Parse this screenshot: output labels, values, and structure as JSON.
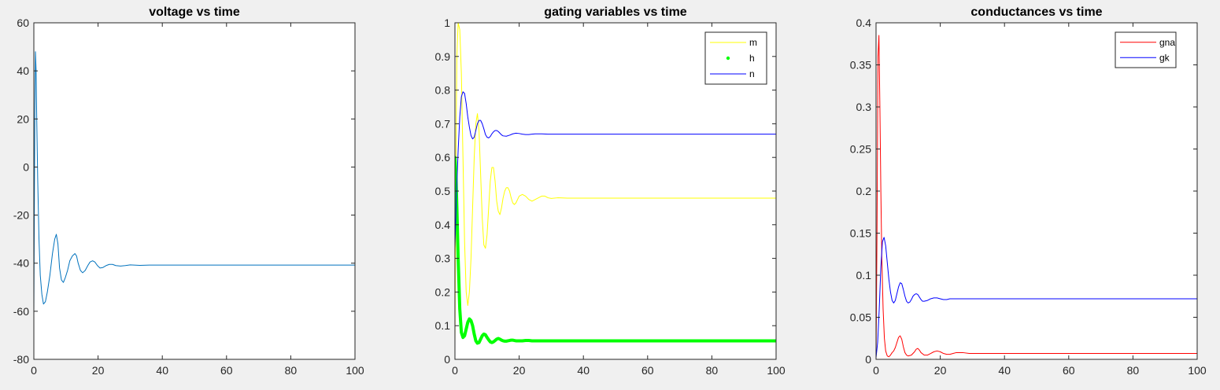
{
  "chart_data": [
    {
      "type": "line",
      "title": "voltage vs time",
      "xlim": [
        0,
        100
      ],
      "ylim": [
        -80,
        60
      ],
      "xticks": [
        0,
        20,
        40,
        60,
        80,
        100
      ],
      "yticks": [
        -80,
        -60,
        -40,
        -20,
        0,
        20,
        40,
        60
      ],
      "x_tick_labels": [
        "0",
        "20",
        "40",
        "60",
        "80",
        "100"
      ],
      "y_tick_labels": [
        "-80",
        "-60",
        "-40",
        "-20",
        "0",
        "20",
        "40",
        "60"
      ],
      "grid": false,
      "legend": null,
      "series": [
        {
          "color": "#0072bd",
          "style": "line",
          "x": [
            0,
            0.3,
            0.5,
            0.7,
            0.9,
            1.2,
            1.6,
            2.0,
            2.5,
            3.0,
            3.6,
            4.2,
            5.0,
            5.8,
            6.5,
            7.0,
            7.5,
            8.0,
            8.6,
            9.2,
            9.8,
            10.5,
            11.2,
            12.0,
            12.8,
            13.3,
            13.8,
            14.5,
            15.2,
            16.0,
            16.8,
            17.5,
            18.3,
            19.0,
            19.8,
            20.6,
            21.5,
            22.5,
            23.5,
            24.5,
            25.5,
            27.0,
            28.5,
            30.0,
            33.0,
            36.0,
            40.0,
            50.0,
            60.0,
            70.0,
            80.0,
            90.0,
            100.0
          ],
          "y": [
            -60,
            20,
            48,
            40,
            20,
            -5,
            -30,
            -45,
            -53,
            -57,
            -56,
            -52,
            -45,
            -36,
            -30,
            -28,
            -32,
            -42,
            -47,
            -48,
            -46,
            -43,
            -39,
            -37,
            -36,
            -37,
            -40,
            -43,
            -44,
            -43,
            -41,
            -39.5,
            -39,
            -39.5,
            -41,
            -42,
            -41.8,
            -41,
            -40.5,
            -40.5,
            -41,
            -41.2,
            -41,
            -40.7,
            -40.9,
            -40.8,
            -40.8,
            -40.8,
            -40.8,
            -40.8,
            -40.8,
            -40.8,
            -40.8
          ]
        }
      ]
    },
    {
      "type": "line",
      "title": "gating variables vs time",
      "xlim": [
        0,
        100
      ],
      "ylim": [
        0,
        1
      ],
      "xticks": [
        0,
        20,
        40,
        60,
        80,
        100
      ],
      "yticks": [
        0,
        0.1,
        0.2,
        0.3,
        0.4,
        0.5,
        0.6,
        0.7,
        0.8,
        0.9,
        1
      ],
      "x_tick_labels": [
        "0",
        "20",
        "40",
        "60",
        "80",
        "100"
      ],
      "y_tick_labels": [
        "0",
        "0.1",
        "0.2",
        "0.3",
        "0.4",
        "0.5",
        "0.6",
        "0.7",
        "0.8",
        "0.9",
        "1"
      ],
      "grid": false,
      "legend": "top-right",
      "series": [
        {
          "name": "m",
          "color": "#ffff00",
          "style": "line",
          "x": [
            0,
            0.3,
            0.6,
            1.0,
            1.5,
            2.0,
            2.5,
            3.0,
            3.5,
            4.0,
            4.5,
            5.0,
            5.5,
            6.0,
            6.5,
            7.0,
            7.5,
            8.0,
            8.5,
            9.0,
            9.5,
            10.0,
            10.5,
            11.0,
            11.5,
            12.0,
            12.5,
            13.0,
            13.5,
            14.0,
            14.5,
            15.0,
            15.5,
            16.0,
            16.5,
            17.0,
            17.5,
            18.0,
            18.5,
            19.0,
            19.5,
            20.0,
            21.0,
            22.0,
            23.0,
            24.0,
            25.0,
            26.0,
            27.0,
            28.0,
            29.0,
            30.0,
            32.0,
            35.0,
            40.0,
            50.0,
            60.0,
            70.0,
            80.0,
            90.0,
            100.0
          ],
          "y": [
            0.05,
            0.6,
            0.9,
            1.0,
            0.98,
            0.85,
            0.6,
            0.35,
            0.2,
            0.16,
            0.2,
            0.3,
            0.45,
            0.6,
            0.7,
            0.73,
            0.68,
            0.55,
            0.42,
            0.34,
            0.33,
            0.37,
            0.45,
            0.53,
            0.57,
            0.57,
            0.53,
            0.47,
            0.44,
            0.43,
            0.45,
            0.48,
            0.5,
            0.51,
            0.51,
            0.5,
            0.48,
            0.465,
            0.46,
            0.465,
            0.475,
            0.485,
            0.49,
            0.485,
            0.475,
            0.47,
            0.475,
            0.48,
            0.485,
            0.485,
            0.48,
            0.478,
            0.48,
            0.479,
            0.479,
            0.479,
            0.479,
            0.479,
            0.479,
            0.479,
            0.479
          ]
        },
        {
          "name": "h",
          "color": "#00ff00",
          "style": "dots",
          "x": [
            0,
            0.3,
            0.6,
            1.0,
            1.5,
            2.0,
            2.5,
            3.0,
            3.5,
            4.0,
            4.5,
            5.0,
            5.5,
            6.0,
            6.5,
            7.0,
            7.5,
            8.0,
            8.5,
            9.0,
            9.5,
            10.0,
            10.5,
            11.0,
            11.5,
            12.0,
            12.5,
            13.0,
            13.5,
            14.0,
            14.5,
            15.0,
            15.5,
            16.0,
            16.5,
            17.0,
            17.5,
            18.0,
            18.5,
            19.0,
            19.5,
            20.0,
            21.0,
            22.0,
            23.0,
            24.0,
            25.0,
            26.0,
            27.0,
            28.0,
            29.0,
            30.0,
            32.0,
            35.0,
            40.0,
            50.0,
            60.0,
            70.0,
            80.0,
            90.0,
            100.0
          ],
          "y": [
            0.6,
            0.55,
            0.45,
            0.3,
            0.15,
            0.08,
            0.065,
            0.07,
            0.09,
            0.11,
            0.12,
            0.115,
            0.1,
            0.075,
            0.055,
            0.048,
            0.05,
            0.06,
            0.07,
            0.075,
            0.073,
            0.065,
            0.058,
            0.052,
            0.05,
            0.052,
            0.056,
            0.06,
            0.062,
            0.06,
            0.057,
            0.055,
            0.054,
            0.054,
            0.055,
            0.056,
            0.057,
            0.057,
            0.056,
            0.055,
            0.055,
            0.055,
            0.055,
            0.056,
            0.056,
            0.055,
            0.055,
            0.055,
            0.055,
            0.055,
            0.055,
            0.055,
            0.055,
            0.055,
            0.055,
            0.055,
            0.055,
            0.055,
            0.055,
            0.055,
            0.055
          ]
        },
        {
          "name": "n",
          "color": "#0000ff",
          "style": "line",
          "x": [
            0,
            0.5,
            1.0,
            1.5,
            2.0,
            2.5,
            3.0,
            3.5,
            4.0,
            4.5,
            5.0,
            5.5,
            6.0,
            6.5,
            7.0,
            7.5,
            8.0,
            8.5,
            9.0,
            9.5,
            10.0,
            10.5,
            11.0,
            11.5,
            12.0,
            12.5,
            13.0,
            13.5,
            14.0,
            14.5,
            15.0,
            16.0,
            17.0,
            18.0,
            19.0,
            20.0,
            21.0,
            22.0,
            23.0,
            24.0,
            25.0,
            27.0,
            29.0,
            32.0,
            35.0,
            40.0,
            50.0,
            60.0,
            70.0,
            80.0,
            90.0,
            100.0
          ],
          "y": [
            0.33,
            0.5,
            0.62,
            0.72,
            0.78,
            0.795,
            0.79,
            0.76,
            0.72,
            0.69,
            0.665,
            0.655,
            0.66,
            0.68,
            0.7,
            0.71,
            0.71,
            0.7,
            0.685,
            0.668,
            0.66,
            0.658,
            0.662,
            0.67,
            0.676,
            0.68,
            0.68,
            0.677,
            0.672,
            0.667,
            0.664,
            0.663,
            0.666,
            0.67,
            0.672,
            0.671,
            0.669,
            0.668,
            0.668,
            0.669,
            0.67,
            0.67,
            0.669,
            0.669,
            0.669,
            0.669,
            0.669,
            0.669,
            0.669,
            0.669,
            0.669,
            0.669
          ]
        }
      ]
    },
    {
      "type": "line",
      "title": "conductances vs time",
      "xlim": [
        0,
        100
      ],
      "ylim": [
        0,
        0.4
      ],
      "xticks": [
        0,
        20,
        40,
        60,
        80,
        100
      ],
      "yticks": [
        0,
        0.05,
        0.1,
        0.15,
        0.2,
        0.25,
        0.3,
        0.35,
        0.4
      ],
      "x_tick_labels": [
        "0",
        "20",
        "40",
        "60",
        "80",
        "100"
      ],
      "y_tick_labels": [
        "0",
        "0.05",
        "0.1",
        "0.15",
        "0.2",
        "0.25",
        "0.3",
        "0.35",
        "0.4"
      ],
      "grid": false,
      "legend": "top-right",
      "series": [
        {
          "name": "gna",
          "color": "#ff0000",
          "style": "line",
          "x": [
            0,
            0.3,
            0.6,
            0.9,
            1.2,
            1.5,
            1.8,
            2.2,
            2.6,
            3.0,
            3.5,
            4.0,
            4.5,
            5.0,
            5.5,
            6.0,
            6.5,
            7.0,
            7.5,
            8.0,
            8.5,
            9.0,
            9.5,
            10.0,
            11.0,
            12.0,
            12.5,
            13.0,
            13.5,
            14.0,
            15.0,
            16.0,
            17.0,
            18.0,
            19.0,
            20.0,
            21.0,
            22.0,
            23.0,
            24.0,
            25.0,
            27.0,
            29.0,
            32.0,
            35.0,
            40.0,
            50.0,
            60.0,
            70.0,
            80.0,
            90.0,
            100.0
          ],
          "y": [
            0,
            0.15,
            0.36,
            0.385,
            0.3,
            0.2,
            0.12,
            0.06,
            0.025,
            0.01,
            0.004,
            0.003,
            0.005,
            0.008,
            0.01,
            0.014,
            0.02,
            0.026,
            0.028,
            0.024,
            0.015,
            0.008,
            0.005,
            0.004,
            0.005,
            0.009,
            0.012,
            0.013,
            0.011,
            0.008,
            0.005,
            0.005,
            0.007,
            0.009,
            0.01,
            0.009,
            0.007,
            0.006,
            0.006,
            0.007,
            0.008,
            0.008,
            0.007,
            0.007,
            0.007,
            0.007,
            0.007,
            0.007,
            0.007,
            0.007,
            0.007,
            0.007
          ]
        },
        {
          "name": "gk",
          "color": "#0000ff",
          "style": "line",
          "x": [
            0,
            0.5,
            1.0,
            1.5,
            2.0,
            2.5,
            3.0,
            3.5,
            4.0,
            4.5,
            5.0,
            5.5,
            6.0,
            6.5,
            7.0,
            7.5,
            8.0,
            8.5,
            9.0,
            9.5,
            10.0,
            10.5,
            11.0,
            11.5,
            12.0,
            12.5,
            13.0,
            13.5,
            14.0,
            14.5,
            15.0,
            16.0,
            17.0,
            18.0,
            19.0,
            20.0,
            21.0,
            22.0,
            23.0,
            24.0,
            25.0,
            27.0,
            29.0,
            32.0,
            35.0,
            40.0,
            50.0,
            60.0,
            70.0,
            80.0,
            90.0,
            100.0
          ],
          "y": [
            0.002,
            0.02,
            0.06,
            0.11,
            0.14,
            0.145,
            0.135,
            0.115,
            0.095,
            0.08,
            0.07,
            0.067,
            0.07,
            0.078,
            0.086,
            0.091,
            0.09,
            0.083,
            0.075,
            0.069,
            0.067,
            0.068,
            0.071,
            0.075,
            0.077,
            0.078,
            0.077,
            0.074,
            0.071,
            0.069,
            0.069,
            0.07,
            0.072,
            0.073,
            0.073,
            0.072,
            0.071,
            0.071,
            0.072,
            0.072,
            0.072,
            0.072,
            0.072,
            0.072,
            0.072,
            0.072,
            0.072,
            0.072,
            0.072,
            0.072,
            0.072,
            0.072
          ]
        }
      ]
    }
  ]
}
